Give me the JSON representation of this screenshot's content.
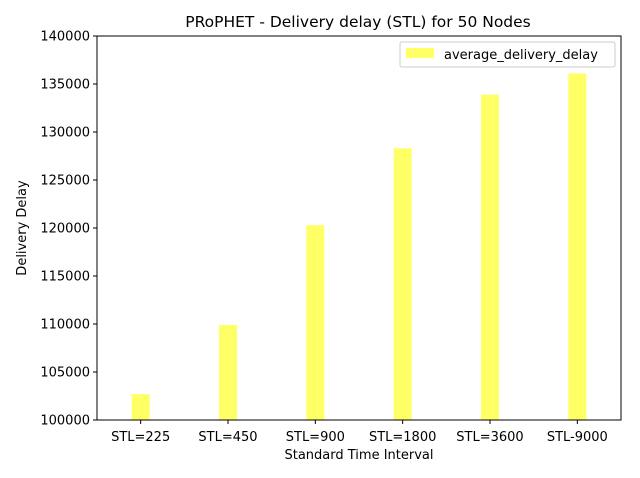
{
  "chart_data": {
    "type": "bar",
    "title": "PRoPHET - Delivery delay (STL) for 50 Nodes",
    "xlabel": "Standard Time Interval",
    "ylabel": "Delivery Delay",
    "categories": [
      "STL=225",
      "STL=450",
      "STL=900",
      "STL=1800",
      "STL=3600",
      "STL-9000"
    ],
    "series": [
      {
        "name": "average_delivery_delay",
        "values": [
          102700,
          109900,
          120300,
          128300,
          133900,
          136100
        ],
        "color": "#ffff66"
      }
    ],
    "ylim": [
      100000,
      140000
    ],
    "yticks": [
      100000,
      105000,
      110000,
      115000,
      120000,
      125000,
      130000,
      135000,
      140000
    ],
    "grid": false,
    "legend_position": "top-right"
  }
}
